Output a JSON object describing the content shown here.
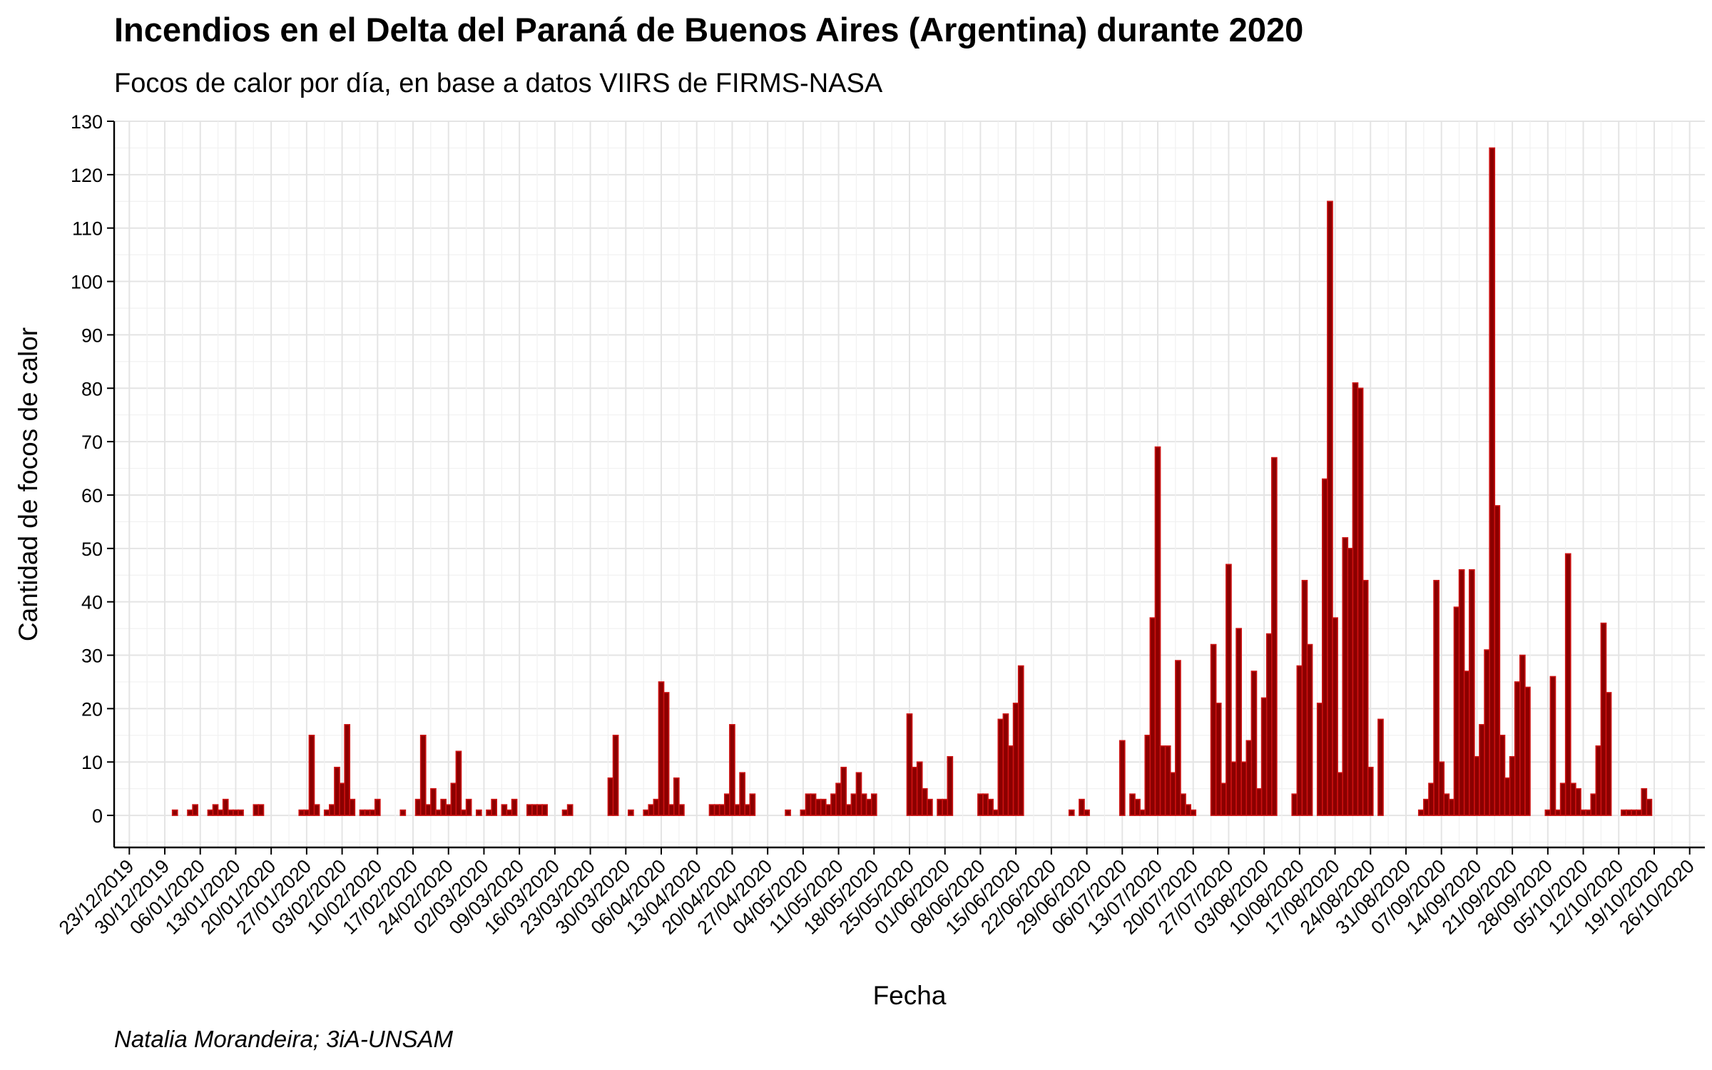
{
  "chart_data": {
    "type": "bar",
    "title": "Incendios en el Delta del Paraná de Buenos Aires (Argentina) durante 2020",
    "subtitle": "Focos de calor por día, en base a datos VIIRS de FIRMS-NASA",
    "caption": "Natalia Morandeira; 3iA-UNSAM",
    "xlabel": "Fecha",
    "ylabel": "Cantidad de focos de calor",
    "x_range": [
      "2019-12-23",
      "2020-10-26"
    ],
    "ylim": [
      -6,
      130
    ],
    "y_ticks": [
      0,
      10,
      20,
      30,
      40,
      50,
      60,
      70,
      80,
      90,
      100,
      110,
      120,
      130
    ],
    "x_tick_labels": [
      "23/12/2019",
      "30/12/2019",
      "06/01/2020",
      "13/01/2020",
      "20/01/2020",
      "27/01/2020",
      "03/02/2020",
      "10/02/2020",
      "17/02/2020",
      "24/02/2020",
      "02/03/2020",
      "09/03/2020",
      "16/03/2020",
      "23/03/2020",
      "30/03/2020",
      "06/04/2020",
      "13/04/2020",
      "20/04/2020",
      "27/04/2020",
      "04/05/2020",
      "11/05/2020",
      "18/05/2020",
      "25/05/2020",
      "01/06/2020",
      "08/06/2020",
      "15/06/2020",
      "22/06/2020",
      "29/06/2020",
      "06/07/2020",
      "13/07/2020",
      "20/07/2020",
      "27/07/2020",
      "03/08/2020",
      "10/08/2020",
      "17/08/2020",
      "24/08/2020",
      "31/08/2020",
      "07/09/2020",
      "14/09/2020",
      "21/09/2020",
      "28/09/2020",
      "05/10/2020",
      "12/10/2020",
      "19/10/2020",
      "26/10/2020"
    ],
    "grid": true,
    "bar_color": "#8b0000",
    "bar_edge_color": "#cc1111",
    "series": [
      {
        "values": [
          [
            "2020-01-01",
            1
          ],
          [
            "2020-01-04",
            1
          ],
          [
            "2020-01-05",
            2
          ],
          [
            "2020-01-08",
            1
          ],
          [
            "2020-01-09",
            2
          ],
          [
            "2020-01-10",
            1
          ],
          [
            "2020-01-11",
            3
          ],
          [
            "2020-01-12",
            1
          ],
          [
            "2020-01-13",
            1
          ],
          [
            "2020-01-14",
            1
          ],
          [
            "2020-01-17",
            2
          ],
          [
            "2020-01-18",
            2
          ],
          [
            "2020-01-26",
            1
          ],
          [
            "2020-01-27",
            1
          ],
          [
            "2020-01-28",
            15
          ],
          [
            "2020-01-29",
            2
          ],
          [
            "2020-01-31",
            1
          ],
          [
            "2020-02-01",
            2
          ],
          [
            "2020-02-02",
            9
          ],
          [
            "2020-02-03",
            6
          ],
          [
            "2020-02-04",
            17
          ],
          [
            "2020-02-05",
            3
          ],
          [
            "2020-02-07",
            1
          ],
          [
            "2020-02-08",
            1
          ],
          [
            "2020-02-09",
            1
          ],
          [
            "2020-02-10",
            3
          ],
          [
            "2020-02-15",
            1
          ],
          [
            "2020-02-18",
            3
          ],
          [
            "2020-02-19",
            15
          ],
          [
            "2020-02-20",
            2
          ],
          [
            "2020-02-21",
            5
          ],
          [
            "2020-02-22",
            1
          ],
          [
            "2020-02-23",
            3
          ],
          [
            "2020-02-24",
            2
          ],
          [
            "2020-02-25",
            6
          ],
          [
            "2020-02-26",
            12
          ],
          [
            "2020-02-27",
            1
          ],
          [
            "2020-02-28",
            3
          ],
          [
            "2020-03-01",
            1
          ],
          [
            "2020-03-03",
            1
          ],
          [
            "2020-03-04",
            3
          ],
          [
            "2020-03-06",
            2
          ],
          [
            "2020-03-07",
            1
          ],
          [
            "2020-03-08",
            3
          ],
          [
            "2020-03-11",
            2
          ],
          [
            "2020-03-12",
            2
          ],
          [
            "2020-03-13",
            2
          ],
          [
            "2020-03-14",
            2
          ],
          [
            "2020-03-18",
            1
          ],
          [
            "2020-03-19",
            2
          ],
          [
            "2020-03-27",
            7
          ],
          [
            "2020-03-28",
            15
          ],
          [
            "2020-03-31",
            1
          ],
          [
            "2020-04-03",
            1
          ],
          [
            "2020-04-04",
            2
          ],
          [
            "2020-04-05",
            3
          ],
          [
            "2020-04-06",
            25
          ],
          [
            "2020-04-07",
            23
          ],
          [
            "2020-04-08",
            2
          ],
          [
            "2020-04-09",
            7
          ],
          [
            "2020-04-10",
            2
          ],
          [
            "2020-04-16",
            2
          ],
          [
            "2020-04-17",
            2
          ],
          [
            "2020-04-18",
            2
          ],
          [
            "2020-04-19",
            4
          ],
          [
            "2020-04-20",
            17
          ],
          [
            "2020-04-21",
            2
          ],
          [
            "2020-04-22",
            8
          ],
          [
            "2020-04-23",
            2
          ],
          [
            "2020-04-24",
            4
          ],
          [
            "2020-05-01",
            1
          ],
          [
            "2020-05-04",
            1
          ],
          [
            "2020-05-05",
            4
          ],
          [
            "2020-05-06",
            4
          ],
          [
            "2020-05-07",
            3
          ],
          [
            "2020-05-08",
            3
          ],
          [
            "2020-05-09",
            2
          ],
          [
            "2020-05-10",
            4
          ],
          [
            "2020-05-11",
            6
          ],
          [
            "2020-05-12",
            9
          ],
          [
            "2020-05-13",
            2
          ],
          [
            "2020-05-14",
            4
          ],
          [
            "2020-05-15",
            8
          ],
          [
            "2020-05-16",
            4
          ],
          [
            "2020-05-17",
            3
          ],
          [
            "2020-05-18",
            4
          ],
          [
            "2020-05-25",
            19
          ],
          [
            "2020-05-26",
            9
          ],
          [
            "2020-05-27",
            10
          ],
          [
            "2020-05-28",
            5
          ],
          [
            "2020-05-29",
            3
          ],
          [
            "2020-05-31",
            3
          ],
          [
            "2020-06-01",
            3
          ],
          [
            "2020-06-02",
            11
          ],
          [
            "2020-06-08",
            4
          ],
          [
            "2020-06-09",
            4
          ],
          [
            "2020-06-10",
            3
          ],
          [
            "2020-06-11",
            1
          ],
          [
            "2020-06-12",
            18
          ],
          [
            "2020-06-13",
            19
          ],
          [
            "2020-06-14",
            13
          ],
          [
            "2020-06-15",
            21
          ],
          [
            "2020-06-16",
            28
          ],
          [
            "2020-06-26",
            1
          ],
          [
            "2020-06-28",
            3
          ],
          [
            "2020-06-29",
            1
          ],
          [
            "2020-07-06",
            14
          ],
          [
            "2020-07-08",
            4
          ],
          [
            "2020-07-09",
            3
          ],
          [
            "2020-07-10",
            1
          ],
          [
            "2020-07-11",
            15
          ],
          [
            "2020-07-12",
            37
          ],
          [
            "2020-07-13",
            69
          ],
          [
            "2020-07-14",
            13
          ],
          [
            "2020-07-15",
            13
          ],
          [
            "2020-07-16",
            8
          ],
          [
            "2020-07-17",
            29
          ],
          [
            "2020-07-18",
            4
          ],
          [
            "2020-07-19",
            2
          ],
          [
            "2020-07-20",
            1
          ],
          [
            "2020-07-24",
            32
          ],
          [
            "2020-07-25",
            21
          ],
          [
            "2020-07-26",
            6
          ],
          [
            "2020-07-27",
            47
          ],
          [
            "2020-07-28",
            10
          ],
          [
            "2020-07-29",
            35
          ],
          [
            "2020-07-30",
            10
          ],
          [
            "2020-07-31",
            14
          ],
          [
            "2020-08-01",
            27
          ],
          [
            "2020-08-02",
            5
          ],
          [
            "2020-08-03",
            22
          ],
          [
            "2020-08-04",
            34
          ],
          [
            "2020-08-05",
            67
          ],
          [
            "2020-08-09",
            4
          ],
          [
            "2020-08-10",
            28
          ],
          [
            "2020-08-11",
            44
          ],
          [
            "2020-08-12",
            32
          ],
          [
            "2020-08-14",
            21
          ],
          [
            "2020-08-15",
            63
          ],
          [
            "2020-08-16",
            115
          ],
          [
            "2020-08-17",
            37
          ],
          [
            "2020-08-18",
            8
          ],
          [
            "2020-08-19",
            52
          ],
          [
            "2020-08-20",
            50
          ],
          [
            "2020-08-21",
            81
          ],
          [
            "2020-08-22",
            80
          ],
          [
            "2020-08-23",
            44
          ],
          [
            "2020-08-24",
            9
          ],
          [
            "2020-08-26",
            18
          ],
          [
            "2020-09-03",
            1
          ],
          [
            "2020-09-04",
            3
          ],
          [
            "2020-09-05",
            6
          ],
          [
            "2020-09-06",
            44
          ],
          [
            "2020-09-07",
            10
          ],
          [
            "2020-09-08",
            4
          ],
          [
            "2020-09-09",
            3
          ],
          [
            "2020-09-10",
            39
          ],
          [
            "2020-09-11",
            46
          ],
          [
            "2020-09-12",
            27
          ],
          [
            "2020-09-13",
            46
          ],
          [
            "2020-09-14",
            11
          ],
          [
            "2020-09-15",
            17
          ],
          [
            "2020-09-16",
            31
          ],
          [
            "2020-09-17",
            125
          ],
          [
            "2020-09-18",
            58
          ],
          [
            "2020-09-19",
            15
          ],
          [
            "2020-09-20",
            7
          ],
          [
            "2020-09-21",
            11
          ],
          [
            "2020-09-22",
            25
          ],
          [
            "2020-09-23",
            30
          ],
          [
            "2020-09-24",
            24
          ],
          [
            "2020-09-28",
            1
          ],
          [
            "2020-09-29",
            26
          ],
          [
            "2020-09-30",
            1
          ],
          [
            "2020-10-01",
            6
          ],
          [
            "2020-10-02",
            49
          ],
          [
            "2020-10-03",
            6
          ],
          [
            "2020-10-04",
            5
          ],
          [
            "2020-10-05",
            1
          ],
          [
            "2020-10-06",
            1
          ],
          [
            "2020-10-07",
            4
          ],
          [
            "2020-10-08",
            13
          ],
          [
            "2020-10-09",
            36
          ],
          [
            "2020-10-10",
            23
          ],
          [
            "2020-10-13",
            1
          ],
          [
            "2020-10-14",
            1
          ],
          [
            "2020-10-15",
            1
          ],
          [
            "2020-10-16",
            1
          ],
          [
            "2020-10-17",
            5
          ],
          [
            "2020-10-18",
            3
          ]
        ]
      }
    ]
  }
}
